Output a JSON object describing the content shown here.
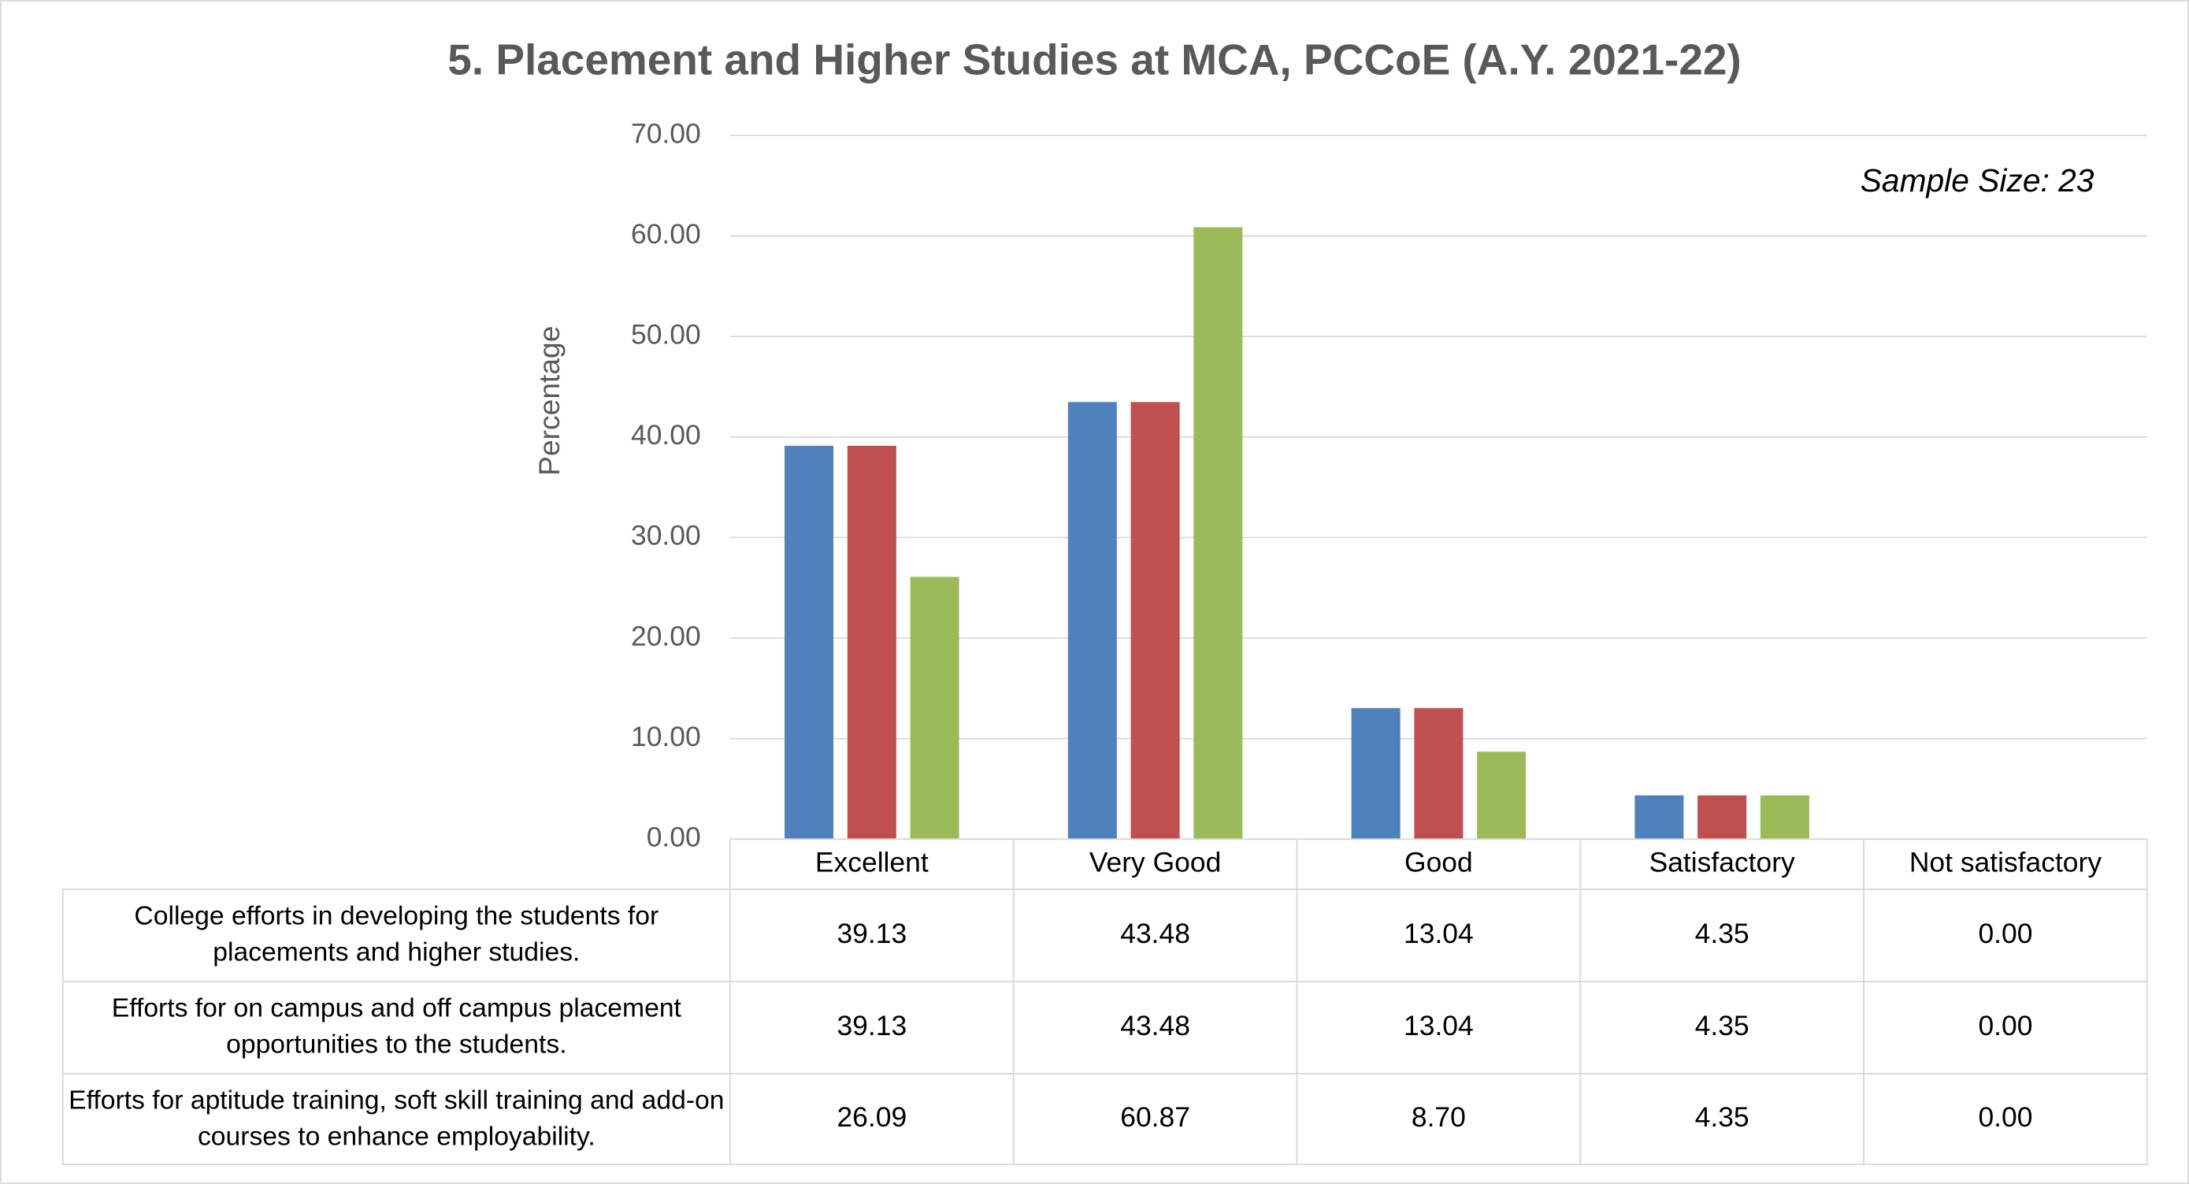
{
  "chart_data": {
    "type": "bar",
    "title": "5. Placement and Higher Studies at MCA, PCCoE (A.Y. 2021-22)",
    "annotation": "Sample Size: 23",
    "y_label": "Percentage",
    "categories": [
      "Excellent",
      "Very Good",
      "Good",
      "Satisfactory",
      "Not satisfactory"
    ],
    "series": [
      {
        "name": "College efforts in developing the students for placements and higher studies.",
        "color": "#4f81bd",
        "values": [
          39.13,
          43.48,
          13.04,
          4.35,
          0
        ],
        "value_labels": [
          "39.13",
          "43.48",
          "13.04",
          "4.35",
          "0.00"
        ]
      },
      {
        "name": "Efforts for on campus and off campus placement opportunities to the students.",
        "color": "#c0504d",
        "values": [
          39.13,
          43.48,
          13.04,
          4.35,
          0
        ],
        "value_labels": [
          "39.13",
          "43.48",
          "13.04",
          "4.35",
          "0.00"
        ]
      },
      {
        "name": "Efforts for aptitude training, soft skill training and add-on courses to enhance employability.",
        "color": "#9bbb59",
        "values": [
          26.09,
          60.87,
          8.7,
          4.35,
          0
        ],
        "value_labels": [
          "26.09",
          "60.87",
          "8.70",
          "4.35",
          "0.00"
        ]
      }
    ],
    "ylim": [
      0,
      70
    ],
    "yticks": [
      {
        "value": 0,
        "label": "0.00"
      },
      {
        "value": 10,
        "label": "10.00"
      },
      {
        "value": 20,
        "label": "20.00"
      },
      {
        "value": 30,
        "label": "30.00"
      },
      {
        "value": 40,
        "label": "40.00"
      },
      {
        "value": 50,
        "label": "50.00"
      },
      {
        "value": 60,
        "label": "60.00"
      },
      {
        "value": 70,
        "label": "70.00"
      }
    ],
    "grid": true
  }
}
